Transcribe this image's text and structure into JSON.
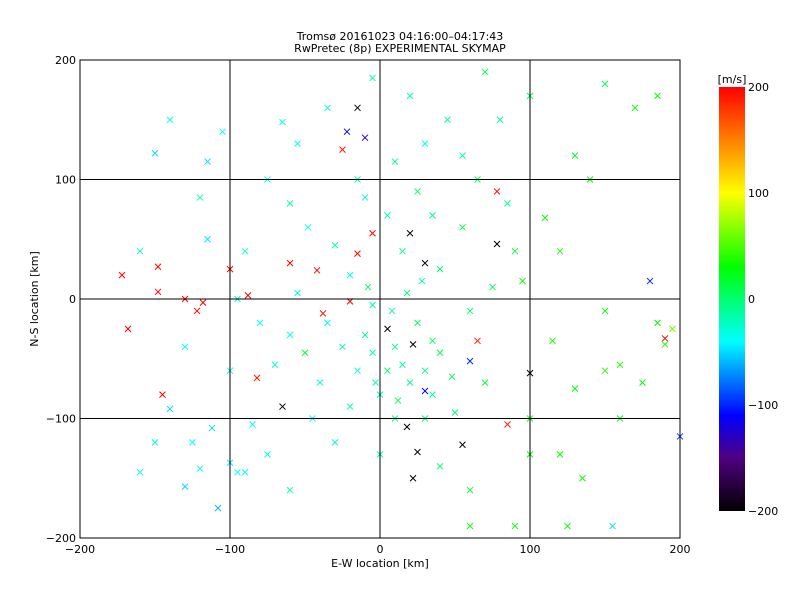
{
  "chart_data": {
    "type": "scatter",
    "title": "Tromsø 20161023 04:16:00–04:17:43",
    "subtitle": "RwPretec (8p) EXPERIMENTAL SKYMAP",
    "xlabel": "E-W location [km]",
    "ylabel": "N-S location [km]",
    "xlim": [
      -200,
      200
    ],
    "ylim": [
      -200,
      200
    ],
    "xticks": [
      -200,
      -100,
      0,
      100,
      200
    ],
    "yticks": [
      -200,
      -100,
      0,
      100,
      200
    ],
    "grid": true,
    "colorbar": {
      "label": "[m/s]",
      "range": [
        -200,
        200
      ],
      "ticks": [
        200,
        100,
        0,
        -100,
        -200
      ],
      "placement": "right"
    },
    "colormap_stops": [
      {
        "v": -200,
        "color": "#000000"
      },
      {
        "v": -150,
        "color": "#500080"
      },
      {
        "v": -110,
        "color": "#0000ff"
      },
      {
        "v": -70,
        "color": "#0090ff"
      },
      {
        "v": -40,
        "color": "#00ffff"
      },
      {
        "v": 0,
        "color": "#00ff70"
      },
      {
        "v": 30,
        "color": "#00ff00"
      },
      {
        "v": 100,
        "color": "#ffff00"
      },
      {
        "v": 150,
        "color": "#ff8000"
      },
      {
        "v": 200,
        "color": "#ff0000"
      }
    ],
    "points_xyv": [
      [
        -172,
        20,
        200
      ],
      [
        -168,
        -25,
        200
      ],
      [
        -148,
        27,
        200
      ],
      [
        -148,
        6,
        200
      ],
      [
        -145,
        -80,
        200
      ],
      [
        -130,
        0,
        200
      ],
      [
        -122,
        -10,
        200
      ],
      [
        -118,
        -3,
        200
      ],
      [
        -100,
        25,
        200
      ],
      [
        -88,
        3,
        200
      ],
      [
        -82,
        -66,
        190
      ],
      [
        -60,
        30,
        200
      ],
      [
        -42,
        24,
        200
      ],
      [
        -38,
        -12,
        190
      ],
      [
        -20,
        -2,
        200
      ],
      [
        -15,
        38,
        200
      ],
      [
        -5,
        55,
        200
      ],
      [
        -25,
        125,
        190
      ],
      [
        190,
        -33,
        200
      ],
      [
        85,
        -105,
        190
      ],
      [
        78,
        90,
        200
      ],
      [
        65,
        -35,
        190
      ],
      [
        -15,
        160,
        -200
      ],
      [
        20,
        55,
        -200
      ],
      [
        5,
        -25,
        -200
      ],
      [
        22,
        -38,
        -200
      ],
      [
        100,
        -62,
        -200
      ],
      [
        18,
        -107,
        -200
      ],
      [
        25,
        -128,
        -200
      ],
      [
        55,
        -122,
        -200
      ],
      [
        22,
        -150,
        -200
      ],
      [
        78,
        46,
        -200
      ],
      [
        -65,
        -90,
        -200
      ],
      [
        30,
        30,
        -190
      ],
      [
        -22,
        140,
        -110
      ],
      [
        180,
        15,
        -100
      ],
      [
        200,
        -115,
        -90
      ],
      [
        30,
        -77,
        -110
      ],
      [
        60,
        -52,
        -100
      ],
      [
        -10,
        135,
        -120
      ],
      [
        -150,
        122,
        -50
      ],
      [
        -115,
        115,
        -50
      ],
      [
        -130,
        -157,
        -50
      ],
      [
        -108,
        -175,
        -60
      ],
      [
        -100,
        -137,
        -45
      ],
      [
        -95,
        -145,
        -40
      ],
      [
        -140,
        -92,
        -50
      ],
      [
        -120,
        -142,
        -40
      ],
      [
        -90,
        -145,
        -40
      ],
      [
        -160,
        -145,
        -40
      ],
      [
        -115,
        50,
        -45
      ],
      [
        -120,
        85,
        -20
      ],
      [
        155,
        -190,
        -50
      ],
      [
        -65,
        148,
        -40
      ],
      [
        -105,
        140,
        -40
      ],
      [
        -125,
        -120,
        -40
      ],
      [
        -112,
        -108,
        -50
      ],
      [
        -85,
        -105,
        -40
      ],
      [
        130,
        -75,
        30
      ],
      [
        150,
        -60,
        40
      ],
      [
        185,
        -20,
        30
      ],
      [
        190,
        -38,
        40
      ],
      [
        115,
        -35,
        30
      ],
      [
        60,
        -190,
        30
      ],
      [
        95,
        15,
        30
      ],
      [
        110,
        68,
        30
      ],
      [
        170,
        160,
        30
      ],
      [
        125,
        -190,
        30
      ],
      [
        100,
        -100,
        20
      ],
      [
        100,
        -130,
        30
      ],
      [
        -50,
        -45,
        20
      ],
      [
        135,
        -150,
        30
      ],
      [
        120,
        -130,
        30
      ],
      [
        160,
        -55,
        40
      ],
      [
        175,
        -70,
        30
      ],
      [
        90,
        -190,
        30
      ],
      [
        195,
        -25,
        60
      ],
      [
        185,
        170,
        30
      ],
      [
        120,
        40,
        40
      ],
      [
        10,
        -40,
        -10
      ],
      [
        15,
        -55,
        -20
      ],
      [
        5,
        -60,
        0
      ],
      [
        20,
        -70,
        -10
      ],
      [
        -5,
        -45,
        -20
      ],
      [
        -10,
        -30,
        -10
      ],
      [
        25,
        -20,
        0
      ],
      [
        30,
        -60,
        -10
      ],
      [
        0,
        -80,
        -20
      ],
      [
        12,
        -85,
        0
      ],
      [
        -15,
        -60,
        -30
      ],
      [
        -25,
        -40,
        -20
      ],
      [
        35,
        -35,
        0
      ],
      [
        40,
        -45,
        10
      ],
      [
        8,
        -10,
        -20
      ],
      [
        18,
        5,
        -10
      ],
      [
        -8,
        10,
        0
      ],
      [
        28,
        15,
        -20
      ],
      [
        -20,
        20,
        -30
      ],
      [
        40,
        25,
        0
      ],
      [
        15,
        40,
        -10
      ],
      [
        -30,
        45,
        -20
      ],
      [
        5,
        70,
        -20
      ],
      [
        35,
        70,
        -10
      ],
      [
        -10,
        85,
        -30
      ],
      [
        25,
        90,
        0
      ],
      [
        55,
        60,
        10
      ],
      [
        60,
        -10,
        0
      ],
      [
        48,
        -65,
        10
      ],
      [
        -40,
        -70,
        -30
      ],
      [
        -35,
        -20,
        -40
      ],
      [
        -55,
        5,
        -30
      ],
      [
        -60,
        -30,
        -40
      ],
      [
        -48,
        60,
        -40
      ],
      [
        -60,
        80,
        -20
      ],
      [
        -70,
        -55,
        -30
      ],
      [
        -80,
        -20,
        -40
      ],
      [
        -90,
        40,
        -30
      ],
      [
        -75,
        100,
        -40
      ],
      [
        -55,
        130,
        -40
      ],
      [
        -35,
        160,
        -30
      ],
      [
        -5,
        185,
        -20
      ],
      [
        20,
        170,
        -20
      ],
      [
        45,
        150,
        -10
      ],
      [
        70,
        190,
        10
      ],
      [
        80,
        150,
        -10
      ],
      [
        55,
        120,
        -20
      ],
      [
        30,
        130,
        -30
      ],
      [
        10,
        115,
        -10
      ],
      [
        -15,
        100,
        -20
      ],
      [
        65,
        100,
        0
      ],
      [
        85,
        80,
        -10
      ],
      [
        90,
        40,
        10
      ],
      [
        75,
        10,
        0
      ],
      [
        70,
        -70,
        10
      ],
      [
        50,
        -95,
        0
      ],
      [
        30,
        -100,
        -10
      ],
      [
        -20,
        -90,
        -20
      ],
      [
        -45,
        -100,
        -40
      ],
      [
        -30,
        -120,
        -30
      ],
      [
        0,
        -130,
        -20
      ],
      [
        40,
        -140,
        0
      ],
      [
        60,
        -160,
        20
      ],
      [
        -75,
        -130,
        -30
      ],
      [
        -60,
        -160,
        -20
      ],
      [
        150,
        180,
        10
      ],
      [
        100,
        170,
        0
      ],
      [
        130,
        120,
        20
      ],
      [
        -100,
        -60,
        -30
      ],
      [
        -130,
        -40,
        -40
      ],
      [
        -150,
        -120,
        -30
      ],
      [
        -160,
        40,
        -20
      ],
      [
        -140,
        150,
        -40
      ],
      [
        -95,
        0,
        -30
      ],
      [
        160,
        -100,
        20
      ],
      [
        150,
        -10,
        30
      ],
      [
        140,
        100,
        30
      ],
      [
        -5,
        -5,
        -20
      ],
      [
        10,
        -100,
        -10
      ],
      [
        35,
        -80,
        -10
      ],
      [
        -3,
        -70,
        -20
      ]
    ]
  }
}
